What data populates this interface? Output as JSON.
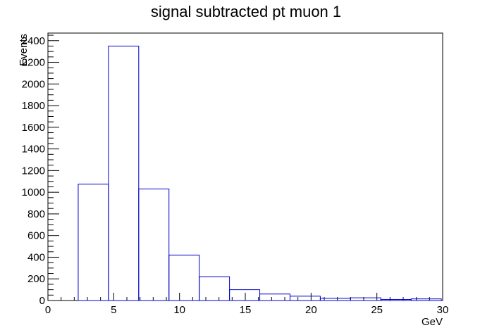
{
  "chart_data": {
    "type": "histogram",
    "title": "signal subtracted pt muon 1",
    "xlabel": "GeV",
    "ylabel": "Events",
    "xlim": [
      0,
      30
    ],
    "ylim": [
      0,
      2470
    ],
    "x_ticks": [
      0,
      5,
      10,
      15,
      20,
      25,
      30
    ],
    "y_ticks": [
      0,
      200,
      400,
      600,
      800,
      1000,
      1200,
      1400,
      1600,
      1800,
      2000,
      2200,
      2400
    ],
    "bin_edges": [
      0,
      2.3,
      4.6,
      6.9,
      9.2,
      11.5,
      13.8,
      16.1,
      18.4,
      20.7,
      23.0,
      25.3,
      27.6,
      29.9
    ],
    "values": [
      0,
      1075,
      2350,
      1030,
      420,
      220,
      100,
      60,
      40,
      20,
      25,
      10,
      15
    ],
    "line_color": "#0000cc",
    "grid": false,
    "legend": "none"
  }
}
